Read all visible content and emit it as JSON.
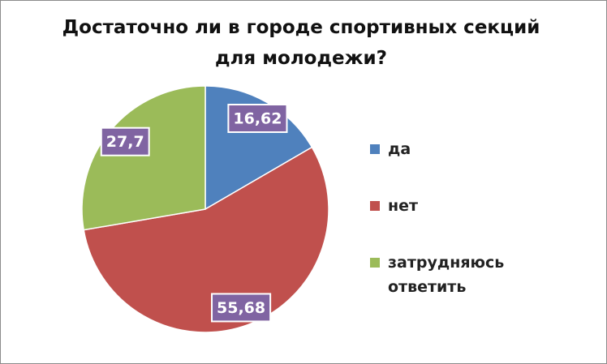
{
  "chart_data": {
    "type": "pie",
    "title": "Достаточно ли в городе спортивных секций для молодежи?",
    "categories": [
      "да",
      "нет",
      "затрудняюсь ответить"
    ],
    "values": [
      16.62,
      55.68,
      27.7
    ],
    "value_labels": [
      "16,62",
      "55,68",
      "27,7"
    ],
    "colors": [
      "#4f81bd",
      "#c0504d",
      "#9bbb59"
    ],
    "label_color": "#8064a2",
    "legend": "right"
  }
}
